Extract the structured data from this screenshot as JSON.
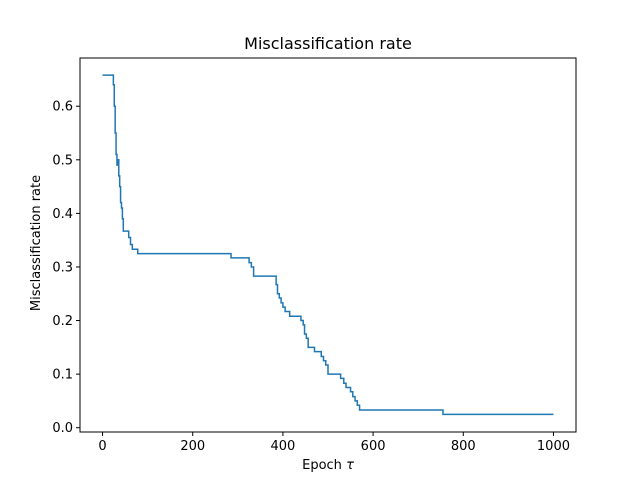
{
  "chart_data": {
    "type": "line",
    "title": "Misclassification rate",
    "xlabel": "Epoch",
    "xlabel_symbol": "τ",
    "ylabel": "Misclassification rate",
    "xlim": [
      -50,
      1050
    ],
    "ylim": [
      -0.008,
      0.69
    ],
    "grid": false,
    "x_ticks": [
      0,
      200,
      400,
      600,
      800,
      1000
    ],
    "y_ticks": [
      0.0,
      0.1,
      0.2,
      0.3,
      0.4,
      0.5,
      0.6
    ],
    "x_tick_labels": [
      "0",
      "200",
      "400",
      "600",
      "800",
      "1000"
    ],
    "y_tick_labels": [
      "0.0",
      "0.1",
      "0.2",
      "0.3",
      "0.4",
      "0.5",
      "0.6"
    ],
    "series": [
      {
        "color": "#1f77b4",
        "step": true,
        "x": [
          0,
          22,
          24,
          26,
          28,
          30,
          32,
          34,
          36,
          38,
          40,
          42,
          44,
          46,
          50,
          58,
          62,
          66,
          72,
          78,
          82,
          285,
          315,
          325,
          330,
          335,
          380,
          385,
          388,
          392,
          396,
          400,
          405,
          410,
          415,
          420,
          440,
          445,
          448,
          452,
          456,
          462,
          470,
          478,
          485,
          490,
          495,
          500,
          520,
          528,
          535,
          540,
          545,
          550,
          555,
          560,
          565,
          570,
          575,
          750,
          755,
          1000
        ],
        "y": [
          0.658,
          0.658,
          0.64,
          0.6,
          0.55,
          0.51,
          0.49,
          0.5,
          0.47,
          0.45,
          0.42,
          0.41,
          0.39,
          0.367,
          0.367,
          0.355,
          0.342,
          0.333,
          0.333,
          0.325,
          0.325,
          0.317,
          0.317,
          0.308,
          0.3,
          0.283,
          0.283,
          0.267,
          0.25,
          0.242,
          0.233,
          0.225,
          0.217,
          0.217,
          0.208,
          0.208,
          0.2,
          0.192,
          0.175,
          0.167,
          0.15,
          0.15,
          0.142,
          0.142,
          0.133,
          0.125,
          0.117,
          0.1,
          0.1,
          0.092,
          0.083,
          0.075,
          0.075,
          0.067,
          0.058,
          0.05,
          0.042,
          0.033,
          0.033,
          0.033,
          0.025,
          0.025
        ]
      }
    ]
  }
}
